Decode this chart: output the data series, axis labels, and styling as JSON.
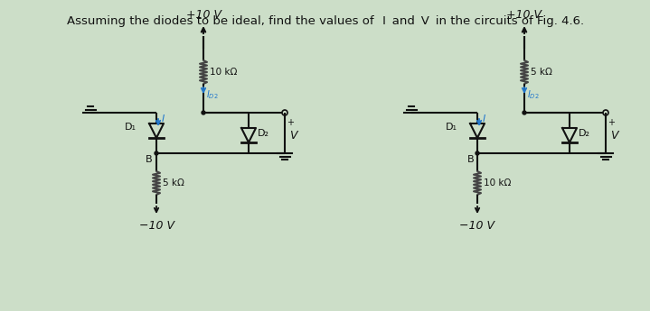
{
  "title": "Assuming the diodes to be ideal, find the values of   I  and  V  in the circuits of Fig. 4.6.",
  "title_fontsize": 9.5,
  "bg_color": "#ccdec8",
  "circuit1": {
    "supply_top": "+10 V",
    "supply_bot": "−10 V",
    "r_top_label": "10 kΩ",
    "r_bot_label": "5 kΩ",
    "d1_label": "D₁",
    "d2_label": "D₂",
    "I_label": "I",
    "V_label": "V",
    "B_label": "B",
    "ID2_label": "I₂"
  },
  "circuit2": {
    "supply_top": "+10 V",
    "supply_bot": "−10 V",
    "r_top_label": "5 kΩ",
    "r_bot_label": "10 kΩ",
    "d1_label": "D₁",
    "d2_label": "D₂",
    "I_label": "I",
    "V_label": "V",
    "B_label": "B",
    "ID2_label": "I₂"
  },
  "line_color": "#111111",
  "text_color": "#111111",
  "blue_color": "#2277cc",
  "resistor_color": "#555555"
}
